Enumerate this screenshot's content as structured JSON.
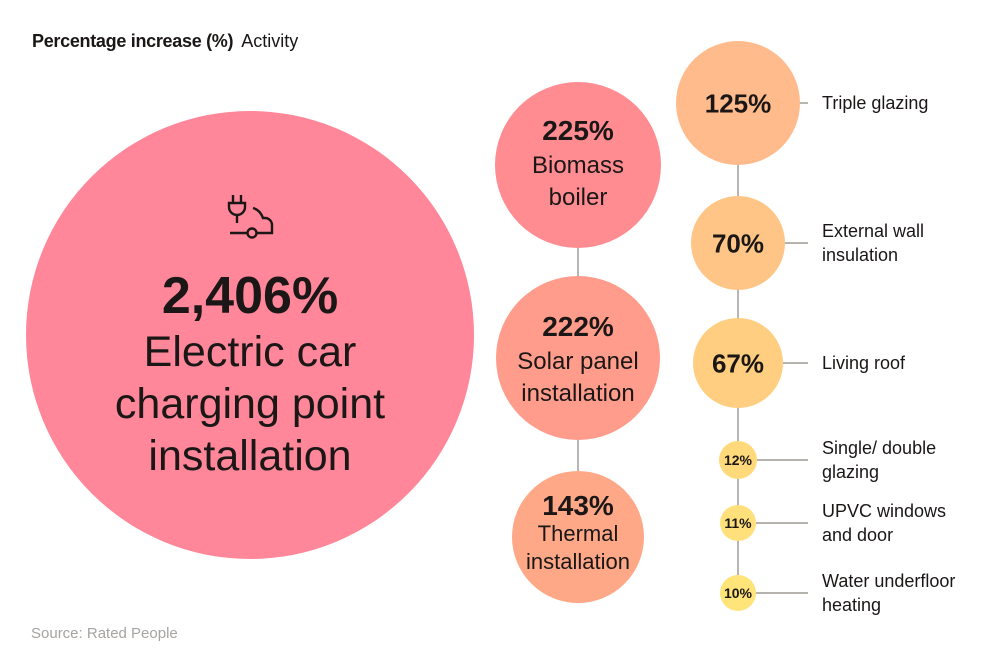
{
  "header": {
    "value_label": "Percentage increase (%)",
    "activity_label": "Activity"
  },
  "source": "Source: Rated People",
  "chart_data": {
    "type": "bubble",
    "title": "",
    "items": [
      {
        "value": 2406,
        "value_label": "2,406%",
        "label": [
          "Electric car",
          "charging point",
          "installation"
        ],
        "color": "#FF8799",
        "icon": "ev-charging-plug-car-icon"
      },
      {
        "value": 225,
        "value_label": "225%",
        "label": [
          "Biomass",
          "boiler"
        ],
        "color": "#FF8C91"
      },
      {
        "value": 222,
        "value_label": "222%",
        "label": [
          "Solar panel",
          "installation"
        ],
        "color": "#FF9C8B"
      },
      {
        "value": 143,
        "value_label": "143%",
        "label": [
          "Thermal",
          "installation"
        ],
        "color": "#FFA888"
      },
      {
        "value": 125,
        "value_label": "125%",
        "label": [
          "Triple glazing"
        ],
        "color": "#FFBB8C"
      },
      {
        "value": 70,
        "value_label": "70%",
        "label": [
          "External wall",
          "insulation"
        ],
        "color": "#FFC586"
      },
      {
        "value": 67,
        "value_label": "67%",
        "label": [
          "Living roof"
        ],
        "color": "#FFCE80"
      },
      {
        "value": 12,
        "value_label": "12%",
        "label": [
          "Single/ double",
          "glazing"
        ],
        "color": "#FFD97A"
      },
      {
        "value": 11,
        "value_label": "11%",
        "label": [
          "UPVC windows",
          "and door"
        ],
        "color": "#FFE07A"
      },
      {
        "value": 10,
        "value_label": "10%",
        "label": [
          "Water underfloor",
          "heating"
        ],
        "color": "#FFE47A"
      }
    ]
  }
}
